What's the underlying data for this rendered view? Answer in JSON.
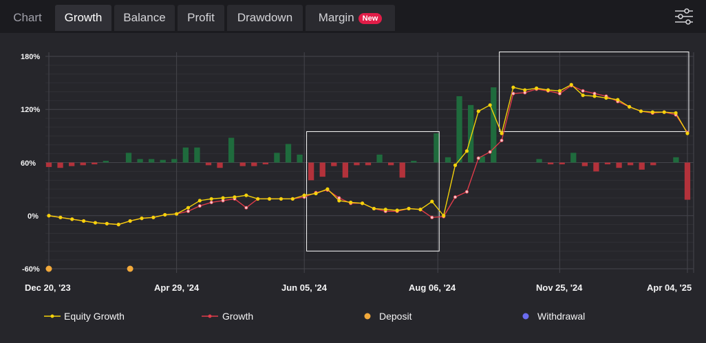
{
  "tabs": [
    {
      "label": "Chart",
      "active": false
    },
    {
      "label": "Growth",
      "active": true
    },
    {
      "label": "Balance",
      "active": false
    },
    {
      "label": "Profit",
      "active": false
    },
    {
      "label": "Drawdown",
      "active": false
    },
    {
      "label": "Margin",
      "active": false,
      "badge": "New"
    }
  ],
  "settings_icon": "sliders-icon",
  "colors": {
    "equity": "#f4d20b",
    "growth": "#e03c4a",
    "bar_positive": "#1f6b3d",
    "bar_negative": "#b3323b",
    "deposit": "#f2a93b",
    "withdrawal": "#6b6cf0"
  },
  "chart_data": {
    "type": "line",
    "y_ticks": [
      "180%",
      "120%",
      "60%",
      "0%",
      "-60%"
    ],
    "ylim": [
      -60,
      180
    ],
    "x_ticks": [
      "Dec 20, '23",
      "Apr 29, '24",
      "Jun 05, '24",
      "Aug 06, '24",
      "Nov 25, '24",
      "Apr 04, '25"
    ],
    "x_range": [
      0,
      55
    ],
    "x_tick_positions": [
      0,
      11,
      22,
      33.5,
      44,
      55
    ],
    "series": [
      {
        "name": "Equity Growth",
        "values": [
          0,
          -2,
          -4,
          -6,
          -8,
          -9,
          -10,
          -6,
          -3,
          -2,
          1,
          2,
          9,
          17,
          19,
          20,
          21,
          23,
          19,
          19,
          19,
          19,
          23,
          25,
          30,
          17,
          15,
          14,
          8,
          7,
          6,
          8,
          7,
          16,
          0,
          57,
          73,
          118,
          125,
          93,
          145,
          142,
          144,
          142,
          141,
          148,
          136,
          135,
          133,
          131,
          123,
          118,
          117,
          117,
          116,
          93
        ]
      },
      {
        "name": "Growth",
        "values": [
          0,
          -2,
          -4,
          -6,
          -8,
          -9,
          -10,
          -6,
          -3,
          -2,
          1,
          2,
          5,
          11,
          15,
          17,
          19,
          9,
          19,
          19,
          19,
          19,
          21,
          26,
          29,
          20,
          14,
          14,
          8,
          5,
          5,
          8,
          7,
          -2,
          -1,
          21,
          27,
          65,
          72,
          85,
          138,
          139,
          143,
          141,
          138,
          147,
          141,
          138,
          135,
          129,
          123,
          118,
          116,
          117,
          114,
          94
        ]
      }
    ],
    "bars": [
      -5,
      -6,
      -4,
      -3,
      -2,
      2,
      0,
      11,
      4,
      4,
      3,
      4,
      17,
      17,
      -3,
      -6,
      28,
      -4,
      -4,
      -2,
      11,
      21,
      9,
      -20,
      -16,
      -4,
      -17,
      -3,
      -3,
      9,
      -3,
      -17,
      2,
      0,
      33,
      6,
      75,
      65,
      7,
      85,
      0,
      0,
      0,
      4,
      -2,
      -2,
      11,
      -4,
      -10,
      -2,
      -6,
      -3,
      -8,
      -3,
      0,
      6,
      -42
    ],
    "deposits": [
      0,
      7
    ],
    "withdrawals": [],
    "highlight_ranges": [
      [
        22.2,
        33.5
      ],
      [
        38.8,
        55
      ]
    ],
    "legend": [
      "Equity Growth",
      "Growth",
      "Deposit",
      "Withdrawal"
    ]
  }
}
